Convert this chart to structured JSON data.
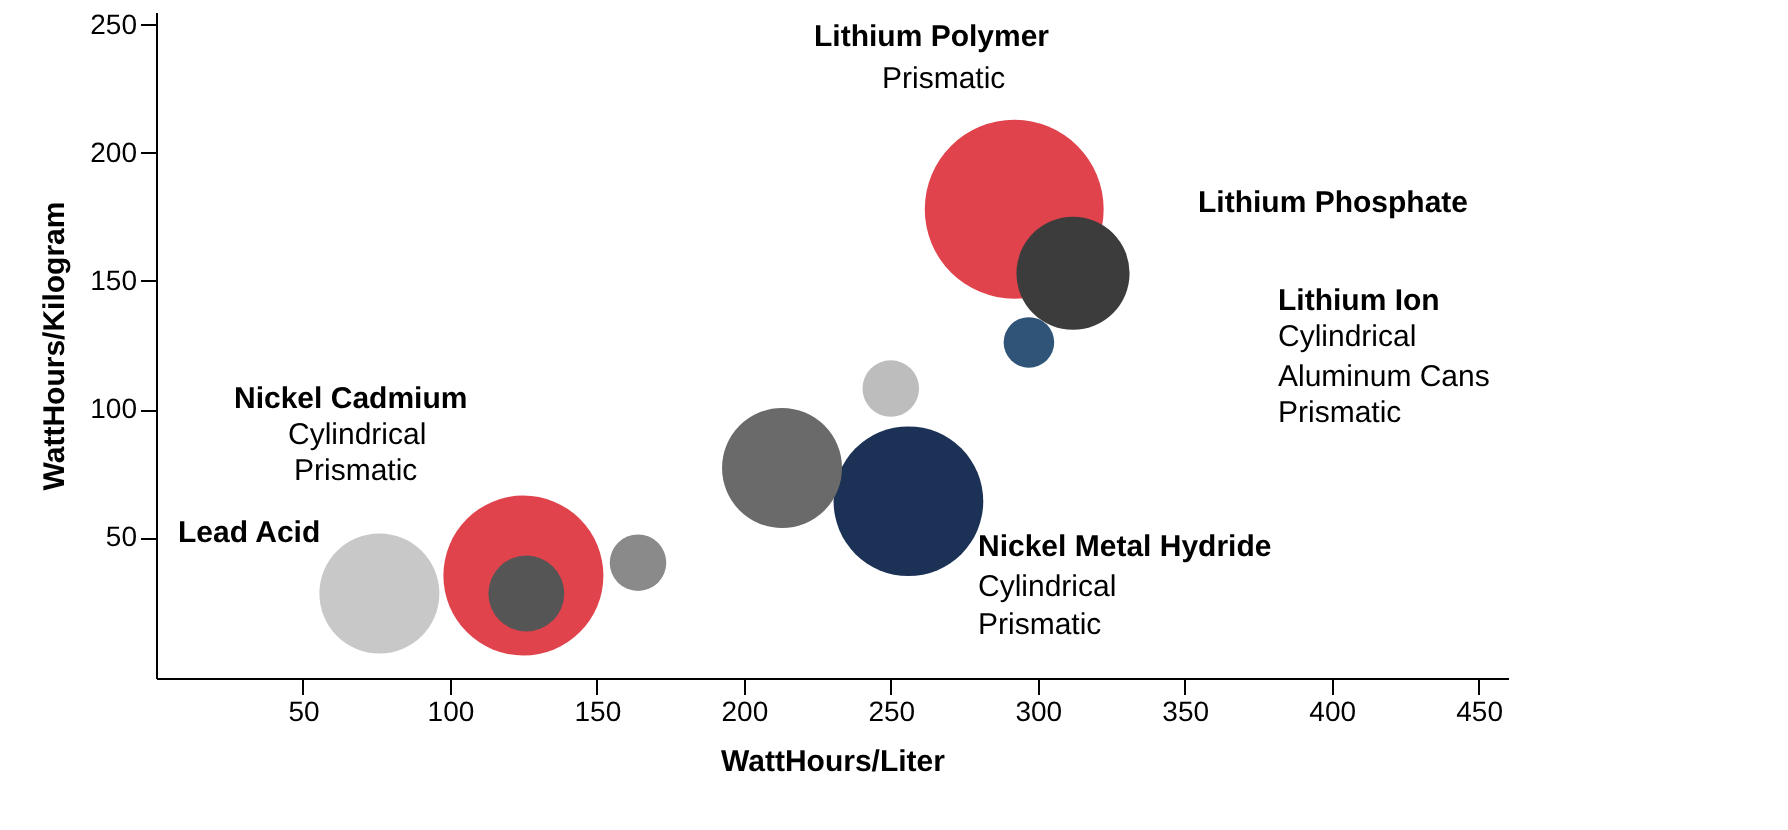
{
  "chart_data": {
    "type": "bubble",
    "xlabel": "WattHours/Liter",
    "ylabel": "WattHours/Kilogram",
    "x": [
      292,
      125,
      256,
      76,
      213,
      312,
      126,
      164,
      250,
      297
    ],
    "values": [
      178,
      35,
      64,
      28,
      77,
      153,
      28,
      40,
      108,
      126
    ],
    "sizes": [
      1,
      0.8,
      0.7,
      0.45,
      0.45,
      0.4,
      0.18,
      0.1,
      0.1,
      0.08
    ],
    "colors": [
      "#e0434c",
      "#e0434c",
      "#1b3256",
      "#c8c8c8",
      "#6a6a6a",
      "#3c3c3c",
      "#555555",
      "#8a8a8a",
      "#bdbdbd",
      "#2f5478"
    ],
    "xlim": [
      0,
      460
    ],
    "ylim": [
      -5,
      255
    ],
    "xticks": [
      50,
      100,
      150,
      200,
      250,
      300,
      350,
      400,
      450
    ],
    "yticks": [
      50,
      100,
      150,
      200,
      250
    ],
    "grid": false,
    "legend": false,
    "annotations": [
      "Lithium Polymer",
      "Prismatic",
      "Lithium Phosphate",
      "Lithium Ion",
      "Cylindrical",
      "Aluminum Cans",
      "Prismatic",
      "Nickel Cadmium",
      "Cylindrical",
      "Prismatic",
      "Lead Acid",
      "Nickel Metal Hydride",
      "Cylindrical",
      "Prismatic"
    ]
  }
}
